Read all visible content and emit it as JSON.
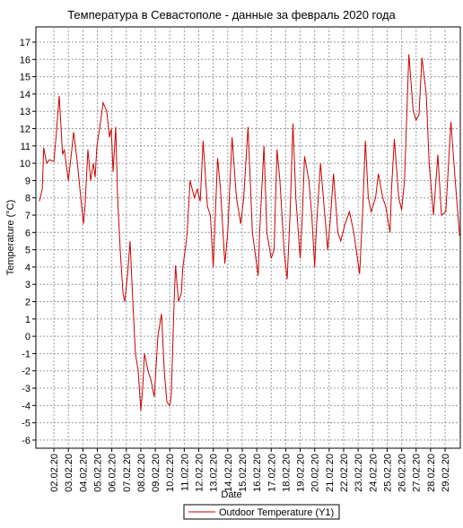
{
  "chart_data": {
    "type": "line",
    "title": "Температура в Севастополе - данные за февраль 2020 года",
    "x_label": "Date",
    "y_label": "Temperature (°C)",
    "x": [
      1.0,
      1.2,
      1.3,
      1.5,
      1.7,
      2.0,
      2.15,
      2.37,
      2.6,
      2.72,
      3.0,
      3.24,
      3.36,
      3.6,
      3.86,
      4.04,
      4.15,
      4.35,
      4.54,
      4.72,
      4.85,
      4.97,
      5.16,
      5.4,
      5.65,
      5.84,
      5.96,
      6.09,
      6.27,
      6.4,
      6.58,
      6.77,
      6.89,
      7.08,
      7.26,
      7.45,
      7.63,
      7.82,
      8.0,
      8.13,
      8.25,
      8.5,
      8.69,
      8.93,
      9.18,
      9.43,
      9.62,
      9.8,
      9.99,
      10.1,
      10.3,
      10.4,
      10.6,
      10.8,
      10.9,
      11.1,
      11.2,
      11.4,
      11.7,
      11.9,
      12.1,
      12.3,
      12.6,
      12.8,
      13.0,
      13.3,
      13.5,
      13.8,
      14.0,
      14.3,
      14.6,
      14.9,
      15.1,
      15.4,
      15.7,
      16.1,
      16.2,
      16.5,
      16.7,
      17.0,
      17.2,
      17.4,
      17.6,
      17.9,
      18.1,
      18.3,
      18.5,
      18.7,
      19.0,
      19.15,
      19.3,
      19.6,
      19.8,
      20.0,
      20.1,
      20.4,
      20.7,
      20.9,
      21.1,
      21.3,
      21.6,
      21.8,
      22.1,
      22.4,
      22.7,
      23.1,
      23.3,
      23.5,
      23.7,
      23.9,
      24.2,
      24.4,
      24.7,
      24.9,
      25.2,
      25.3,
      25.5,
      25.8,
      26.0,
      26.2,
      26.5,
      26.8,
      27.0,
      27.2,
      27.4,
      27.7,
      27.9,
      28.2,
      28.5,
      28.75,
      29.05,
      29.4,
      29.7,
      30.0
    ],
    "series": [
      {
        "name": "Outdoor Temperature (Y1)",
        "color": "#cc0000",
        "values": [
          7.8,
          8.5,
          10.9,
          10.0,
          10.2,
          10.1,
          11.5,
          13.9,
          10.5,
          10.8,
          9.0,
          10.8,
          11.8,
          10.2,
          8.0,
          6.5,
          7.5,
          10.8,
          9.0,
          10.0,
          9.2,
          11.0,
          12.0,
          13.5,
          13.0,
          11.5,
          12.0,
          9.5,
          12.1,
          8.0,
          5.0,
          2.5,
          2.0,
          3.5,
          5.5,
          2.0,
          -1.0,
          -2.0,
          -4.3,
          -3.0,
          -1.0,
          -2.0,
          -2.5,
          -3.5,
          0.0,
          1.3,
          -2.0,
          -3.8,
          -4.0,
          -3.5,
          2.0,
          4.1,
          2.0,
          2.5,
          4.0,
          5.2,
          6.0,
          9.0,
          8.0,
          8.5,
          7.8,
          11.3,
          7.5,
          7.0,
          4.0,
          10.3,
          8.5,
          4.2,
          6.0,
          11.5,
          8.0,
          6.5,
          8.0,
          12.1,
          6.0,
          3.5,
          6.0,
          11.0,
          6.0,
          4.5,
          5.0,
          10.8,
          9.0,
          4.8,
          3.3,
          7.0,
          12.3,
          8.0,
          4.5,
          7.0,
          10.4,
          9.0,
          7.0,
          4.0,
          6.0,
          10.0,
          7.0,
          5.0,
          7.0,
          9.4,
          6.0,
          5.5,
          6.5,
          7.2,
          6.0,
          3.6,
          7.0,
          11.3,
          8.0,
          7.2,
          8.0,
          9.4,
          8.0,
          7.5,
          6.0,
          8.5,
          11.4,
          8.0,
          7.3,
          9.0,
          16.3,
          13.0,
          12.5,
          12.8,
          16.1,
          14.0,
          10.0,
          7.0,
          10.5,
          7.0,
          7.2,
          12.4,
          9.0,
          5.8
        ]
      }
    ],
    "xlim": [
      0.76,
      30.05
    ],
    "xticks": [
      {
        "value": 2,
        "label": "02.02.20"
      },
      {
        "value": 3,
        "label": "03.02.20"
      },
      {
        "value": 4,
        "label": "04.02.20"
      },
      {
        "value": 5,
        "label": "05.02.20"
      },
      {
        "value": 6,
        "label": "06.02.20"
      },
      {
        "value": 7,
        "label": "07.02.20"
      },
      {
        "value": 8,
        "label": "08.02.20"
      },
      {
        "value": 9,
        "label": "09.02.20"
      },
      {
        "value": 10,
        "label": "10.02.20"
      },
      {
        "value": 11,
        "label": "11.02.20"
      },
      {
        "value": 12,
        "label": "12.02.20"
      },
      {
        "value": 13,
        "label": "13.02.20"
      },
      {
        "value": 14,
        "label": "14.02.20"
      },
      {
        "value": 15,
        "label": "15.02.20"
      },
      {
        "value": 16,
        "label": "16.02.20"
      },
      {
        "value": 17,
        "label": "17.02.20"
      },
      {
        "value": 18,
        "label": "18.02.20"
      },
      {
        "value": 19,
        "label": "19.02.20"
      },
      {
        "value": 20,
        "label": "20.02.20"
      },
      {
        "value": 21,
        "label": "21.02.20"
      },
      {
        "value": 22,
        "label": "22.02.20"
      },
      {
        "value": 23,
        "label": "23.02.20"
      },
      {
        "value": 24,
        "label": "24.02.20"
      },
      {
        "value": 25,
        "label": "25.02.20"
      },
      {
        "value": 26,
        "label": "26.02.20"
      },
      {
        "value": 27,
        "label": "27.02.20"
      },
      {
        "value": 28,
        "label": "28.02.20"
      },
      {
        "value": 29,
        "label": "29.02.20"
      }
    ],
    "ylim": [
      -6.47,
      17.88
    ],
    "yticks": [
      -6,
      -5,
      -4,
      -3,
      -2,
      -1,
      0,
      1,
      2,
      3,
      4,
      5,
      6,
      7,
      8,
      9,
      10,
      11,
      12,
      13,
      14,
      15,
      16,
      17
    ],
    "grid": true,
    "legend": "bottom"
  }
}
